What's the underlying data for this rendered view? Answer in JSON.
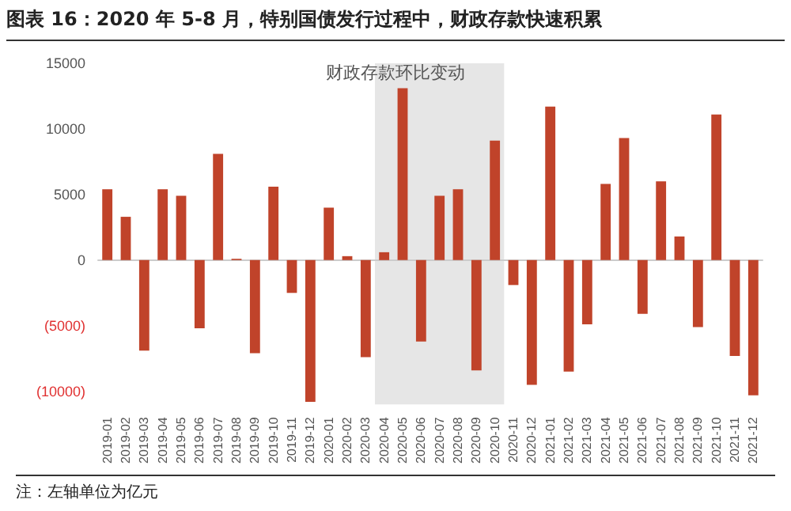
{
  "chart_data": {
    "type": "bar",
    "title": "图表 16：2020 年 5-8 月，特别国债发行过程中，财政存款快速积累",
    "subtitle": "财政存款环比变动",
    "categories": [
      "2019-01",
      "2019-02",
      "2019-03",
      "2019-04",
      "2019-05",
      "2019-06",
      "2019-07",
      "2019-08",
      "2019-09",
      "2019-10",
      "2019-11",
      "2019-12",
      "2020-01",
      "2020-02",
      "2020-03",
      "2020-04",
      "2020-05",
      "2020-06",
      "2020-07",
      "2020-08",
      "2020-09",
      "2020-10",
      "2020-11",
      "2020-12",
      "2021-01",
      "2021-02",
      "2021-03",
      "2021-04",
      "2021-05",
      "2021-06",
      "2021-07",
      "2021-08",
      "2021-09",
      "2021-10",
      "2021-11",
      "2021-12"
    ],
    "series": [
      {
        "color": "#c0432a",
        "values": [
          5400,
          3300,
          -6900,
          5400,
          4900,
          -5200,
          8100,
          100,
          -7100,
          5600,
          -2500,
          -10800,
          4000,
          300,
          -7400,
          600,
          13100,
          -6200,
          4900,
          5400,
          -8400,
          9100,
          -1900,
          -9500,
          11700,
          -8500,
          -4900,
          5800,
          9300,
          -4100,
          6000,
          1800,
          -5100,
          11100,
          -7300,
          -10300
        ]
      }
    ],
    "ylim": [
      -11000,
      15000
    ],
    "yticks": [
      {
        "value": -10000,
        "label": "(10000)"
      },
      {
        "value": -5000,
        "label": "(5000)"
      },
      0,
      5000,
      10000,
      15000
    ],
    "bands": [
      {
        "axis": "x",
        "from": "2020-04",
        "to": "2020-10",
        "color": "#e6e6e6"
      }
    ],
    "annotations": [
      "注：左轴单位为亿元"
    ]
  }
}
